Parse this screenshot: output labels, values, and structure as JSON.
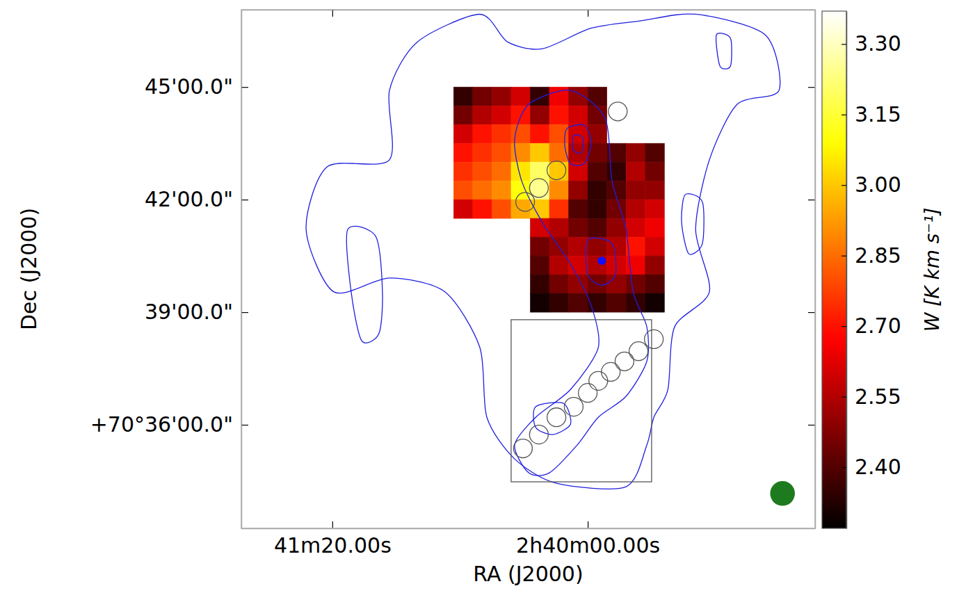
{
  "chart_data": {
    "type": "heatmap",
    "x_label": "RA (J2000)",
    "y_label": "Dec (J2000)",
    "xlim": [
      108.5,
      -71.2
    ],
    "ylim": [
      33.24,
      47.06
    ],
    "xticks": [
      {
        "value": 80,
        "label": "41m20.00s"
      },
      {
        "value": 0,
        "label": "2h40m00.00s"
      }
    ],
    "yticks": [
      {
        "value": 36,
        "label": "+70°36'00.0\""
      },
      {
        "value": 39,
        "label": "39'00.0\""
      },
      {
        "value": 42,
        "label": "42'00.0\""
      },
      {
        "value": 45,
        "label": "45'00.0\""
      }
    ],
    "heatmap": {
      "x": [
        39,
        33,
        27,
        21,
        15,
        9,
        3,
        -3,
        -9,
        -15,
        -21
      ],
      "y": [
        44.75,
        44.25,
        43.75,
        43.25,
        42.75,
        42.25,
        41.75,
        41.25,
        40.75,
        40.25,
        39.75,
        39.25
      ],
      "z": [
        [
          2.35,
          2.45,
          2.5,
          2.6,
          2.35,
          2.65,
          2.5,
          2.4,
          null,
          null,
          null
        ],
        [
          2.45,
          2.55,
          2.6,
          2.7,
          2.5,
          2.7,
          2.6,
          2.45,
          null,
          null,
          null
        ],
        [
          2.6,
          2.7,
          2.75,
          2.8,
          2.7,
          2.8,
          2.6,
          2.5,
          null,
          null,
          null
        ],
        [
          2.7,
          2.75,
          2.8,
          2.9,
          3.0,
          2.85,
          2.55,
          2.45,
          2.4,
          2.5,
          2.4
        ],
        [
          2.75,
          2.8,
          2.85,
          3.05,
          3.2,
          3.0,
          2.6,
          2.4,
          2.35,
          2.55,
          2.45
        ],
        [
          2.8,
          2.85,
          2.9,
          3.1,
          3.25,
          2.9,
          2.5,
          2.35,
          2.4,
          2.5,
          2.5
        ],
        [
          2.6,
          2.7,
          2.8,
          2.95,
          3.0,
          2.75,
          2.4,
          2.35,
          2.45,
          2.55,
          2.6
        ],
        [
          null,
          null,
          null,
          null,
          2.6,
          2.55,
          2.45,
          2.4,
          2.5,
          2.6,
          2.65
        ],
        [
          null,
          null,
          null,
          null,
          2.45,
          2.5,
          2.55,
          2.5,
          2.55,
          2.7,
          2.6
        ],
        [
          null,
          null,
          null,
          null,
          2.4,
          2.55,
          2.6,
          2.55,
          2.6,
          2.65,
          2.5
        ],
        [
          null,
          null,
          null,
          null,
          2.35,
          2.45,
          2.5,
          2.45,
          2.5,
          2.45,
          2.4
        ],
        [
          null,
          null,
          null,
          null,
          2.3,
          2.35,
          2.4,
          2.35,
          2.4,
          2.35,
          2.3
        ]
      ]
    },
    "colorbar": {
      "label": "W [K km s⁻¹]",
      "range": [
        2.27,
        3.37
      ],
      "ticks": [
        {
          "value": 2.4,
          "label": "2.40"
        },
        2.55,
        {
          "value": 2.7,
          "label": "2.70"
        },
        2.85,
        {
          "value": 3.0,
          "label": "3.00"
        },
        3.15,
        {
          "value": 3.3,
          "label": "3.30"
        }
      ]
    },
    "contours": {
      "color": "#1f1fe0",
      "lines": [
        {
          "x": [
            62.1,
            53.4,
            33.8,
            25.1,
            14.2,
            -1.1,
            -16.3,
            -33.8,
            -55.6,
            -59.9,
            -46.8,
            -38.1,
            -33.8,
            -38.1,
            -27.2,
            -25.1,
            -20.7,
            -18.5,
            -12.0,
            9.8,
            22.9,
            31.6,
            33.8,
            44.7,
            62.1,
            79.5,
            88.2,
            81.7,
            62.1
          ],
          "y": [
            44.91,
            46.2,
            46.94,
            46.2,
            46.02,
            46.57,
            46.76,
            46.94,
            46.39,
            44.91,
            44.54,
            43.06,
            41.2,
            39.54,
            38.61,
            36.94,
            36.2,
            35.46,
            34.35,
            34.44,
            35.09,
            36.2,
            38.06,
            39.54,
            39.91,
            39.54,
            41.2,
            42.87,
            43.06
          ]
        },
        {
          "x": [
            75.2,
            66.4,
            64.3,
            65.4,
            70.8,
            74.1
          ],
          "y": [
            41.2,
            41.02,
            39.54,
            38.43,
            38.24,
            39.54
          ]
        },
        {
          "x": [
            18.5,
            5.4,
            -5.4,
            -7.6,
            -12.0,
            -14.2,
            -18.5,
            -18.5,
            -12.0,
            -3.3,
            3.3,
            12.0,
            18.5,
            22.9,
            16.3,
            5.4,
            -3.3,
            -1.1,
            5.4,
            14.2,
            20.7,
            22.9
          ],
          "y": [
            44.54,
            44.91,
            44.17,
            42.5,
            41.2,
            39.54,
            38.61,
            37.69,
            36.76,
            36.2,
            35.46,
            34.72,
            34.72,
            35.46,
            36.2,
            36.94,
            38.06,
            39.17,
            40.28,
            41.39,
            42.5,
            43.61
          ]
        },
        {
          "x": [
            6.5,
            1.1,
            -1.1,
            1.1,
            5.4,
            7.2
          ],
          "y": [
            43.89,
            43.98,
            43.52,
            42.96,
            42.96,
            43.43
          ]
        },
        {
          "x": [
            4.4,
            1.5,
            2.0,
            4.6
          ],
          "y": [
            43.7,
            43.65,
            43.24,
            43.33
          ]
        },
        {
          "x": [
            0,
            -7.6,
            -8.7,
            -4.4,
            0
          ],
          "y": [
            40.93,
            40.83,
            40.0,
            39.72,
            40.0
          ]
        },
        {
          "x": [
            16.3,
            7.6,
            5.4,
            10.9,
            16.3
          ],
          "y": [
            36.48,
            36.57,
            36.02,
            35.74,
            35.93
          ]
        },
        {
          "x": [
            -30.5,
            -35.9,
            -35.9,
            -31.6,
            -29.4
          ],
          "y": [
            42.13,
            41.94,
            40.83,
            40.56,
            41.39
          ]
        },
        {
          "x": [
            -40.3,
            -44.7,
            -44.7,
            -41.4
          ],
          "y": [
            46.39,
            46.3,
            45.56,
            45.56
          ]
        }
      ]
    },
    "peak": {
      "color": "#1010ff",
      "x": -4.4,
      "y": 40.37
    },
    "apertures": {
      "color": "#555555",
      "radius": 0.25,
      "x": [
        -9.4,
        9.8,
        15.3,
        19.6,
        -20.7,
        -15.9,
        -11.5,
        -7.2,
        -3.3,
        0,
        4.4,
        9.8,
        15.3,
        20.3
      ],
      "y": [
        44.35,
        42.78,
        42.31,
        41.94,
        38.28,
        37.96,
        37.69,
        37.41,
        37.17,
        36.85,
        36.48,
        36.2,
        35.74,
        35.37
      ]
    },
    "box": {
      "color": "#555555",
      "x": [
        24.0,
        -20.0
      ],
      "y": [
        34.48,
        38.8
      ]
    },
    "beam": {
      "color": "#1e7a1e",
      "x": -61,
      "y": 34.17,
      "radius": 0.33
    }
  }
}
